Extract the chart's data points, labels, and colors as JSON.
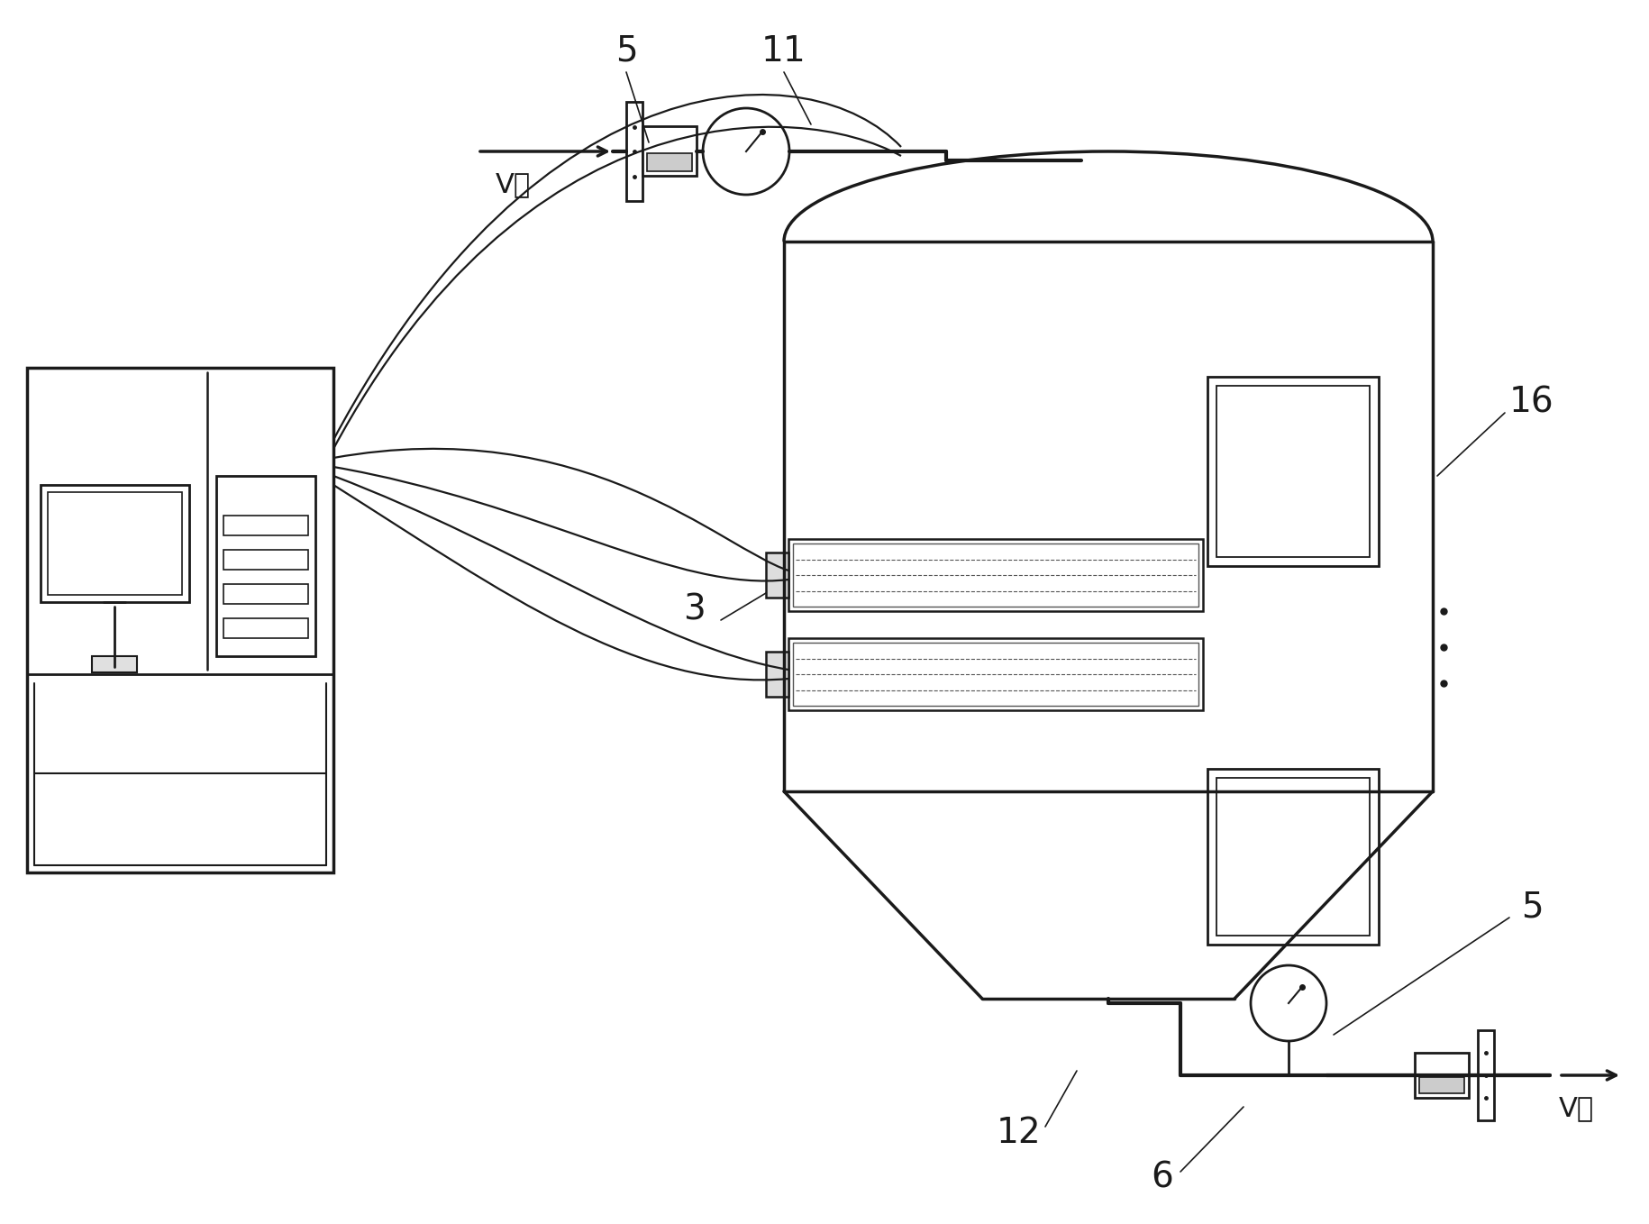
{
  "bg_color": "#ffffff",
  "line_color": "#1a1a1a",
  "labels": {
    "5_top": "5",
    "11": "11",
    "16": "16",
    "3": "3",
    "5_bot": "5",
    "12": "12",
    "6": "6",
    "v_water_top": "V水",
    "v_water_bot": "V水"
  }
}
